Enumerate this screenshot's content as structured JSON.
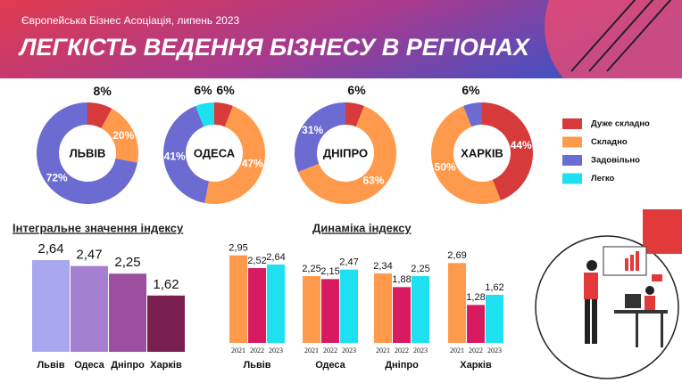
{
  "header": {
    "subtitle": "Європейська Бізнес Асоціація, липень 2023",
    "title": "ЛЕГКІСТЬ ВЕДЕННЯ БІЗНЕСУ В РЕГІОНАХ"
  },
  "chart_data": [
    {
      "type": "pie",
      "categories": [
        "Дуже складно",
        "Складно",
        "Задовільно",
        "Легко"
      ],
      "colors": [
        "#d63a3a",
        "#ff9a4d",
        "#6b6bd1",
        "#1de0f0"
      ],
      "series": [
        {
          "name": "ЛЬВІВ",
          "values": [
            8,
            20,
            72,
            null
          ],
          "value_labels": [
            "8%",
            "20%",
            "72%",
            null
          ]
        },
        {
          "name": "ОДЕСА",
          "values": [
            6,
            47,
            41,
            6
          ],
          "value_labels": [
            "6%",
            "47%",
            "41%",
            "6%"
          ]
        },
        {
          "name": "ДНІПРО",
          "values": [
            6,
            63,
            31,
            null
          ],
          "value_labels": [
            "6%",
            "63%",
            "31%",
            null
          ]
        },
        {
          "name": "ХАРКІВ",
          "values": [
            44,
            50,
            6,
            null
          ],
          "value_labels": [
            "44%",
            "50%",
            "6%",
            null
          ]
        }
      ]
    },
    {
      "type": "bar",
      "title": "Інтегральне значення індексу",
      "categories": [
        "Львів",
        "Одеса",
        "Дніпро",
        "Харків"
      ],
      "values": [
        2.64,
        2.47,
        2.25,
        1.62
      ],
      "value_labels": [
        "2,64",
        "2,47",
        "2,25",
        "1,62"
      ],
      "colors": [
        "#a8a8f0",
        "#a77fd0",
        "#9b4f9e",
        "#7a2050"
      ],
      "ylim": [
        0,
        3
      ]
    },
    {
      "type": "grouped-bar",
      "title": "Динаміка індексу",
      "categories": [
        "Львів",
        "Одеса",
        "Дніпро",
        "Харків"
      ],
      "series": [
        {
          "name": "2021",
          "color": "#ff9a4d",
          "values": [
            2.95,
            2.25,
            2.34,
            2.69
          ],
          "value_labels": [
            "2,95",
            "2,25",
            "2,34",
            "2,69"
          ]
        },
        {
          "name": "2022",
          "color": "#d81b60",
          "values": [
            2.52,
            2.15,
            1.88,
            1.28
          ],
          "value_labels": [
            "2,52",
            "2,15",
            "1,88",
            "1,28"
          ]
        },
        {
          "name": "2023",
          "color": "#1de0f0",
          "values": [
            2.64,
            2.47,
            2.25,
            1.62
          ],
          "value_labels": [
            "2,64",
            "2,47",
            "2,25",
            "1,62"
          ]
        }
      ],
      "ylim": [
        0,
        3
      ]
    }
  ]
}
